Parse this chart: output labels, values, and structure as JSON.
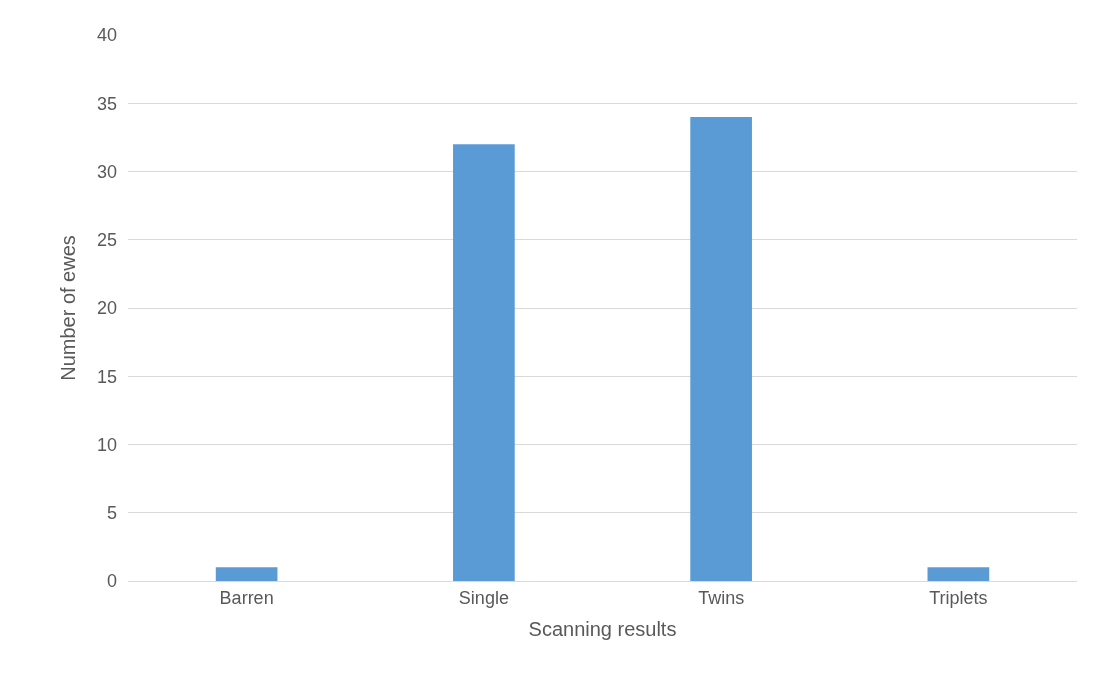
{
  "chart_data": {
    "type": "bar",
    "xlabel": "Scanning results",
    "ylabel": "Number of ewes",
    "categories": [
      "Barren",
      "Single",
      "Twins",
      "Triplets"
    ],
    "values": [
      1,
      32,
      34,
      1
    ],
    "color": "#5b9bd5",
    "ylim": [
      0,
      40
    ],
    "yticks": [
      0,
      5,
      10,
      15,
      20,
      25,
      30,
      35,
      40
    ],
    "grid": "y"
  }
}
